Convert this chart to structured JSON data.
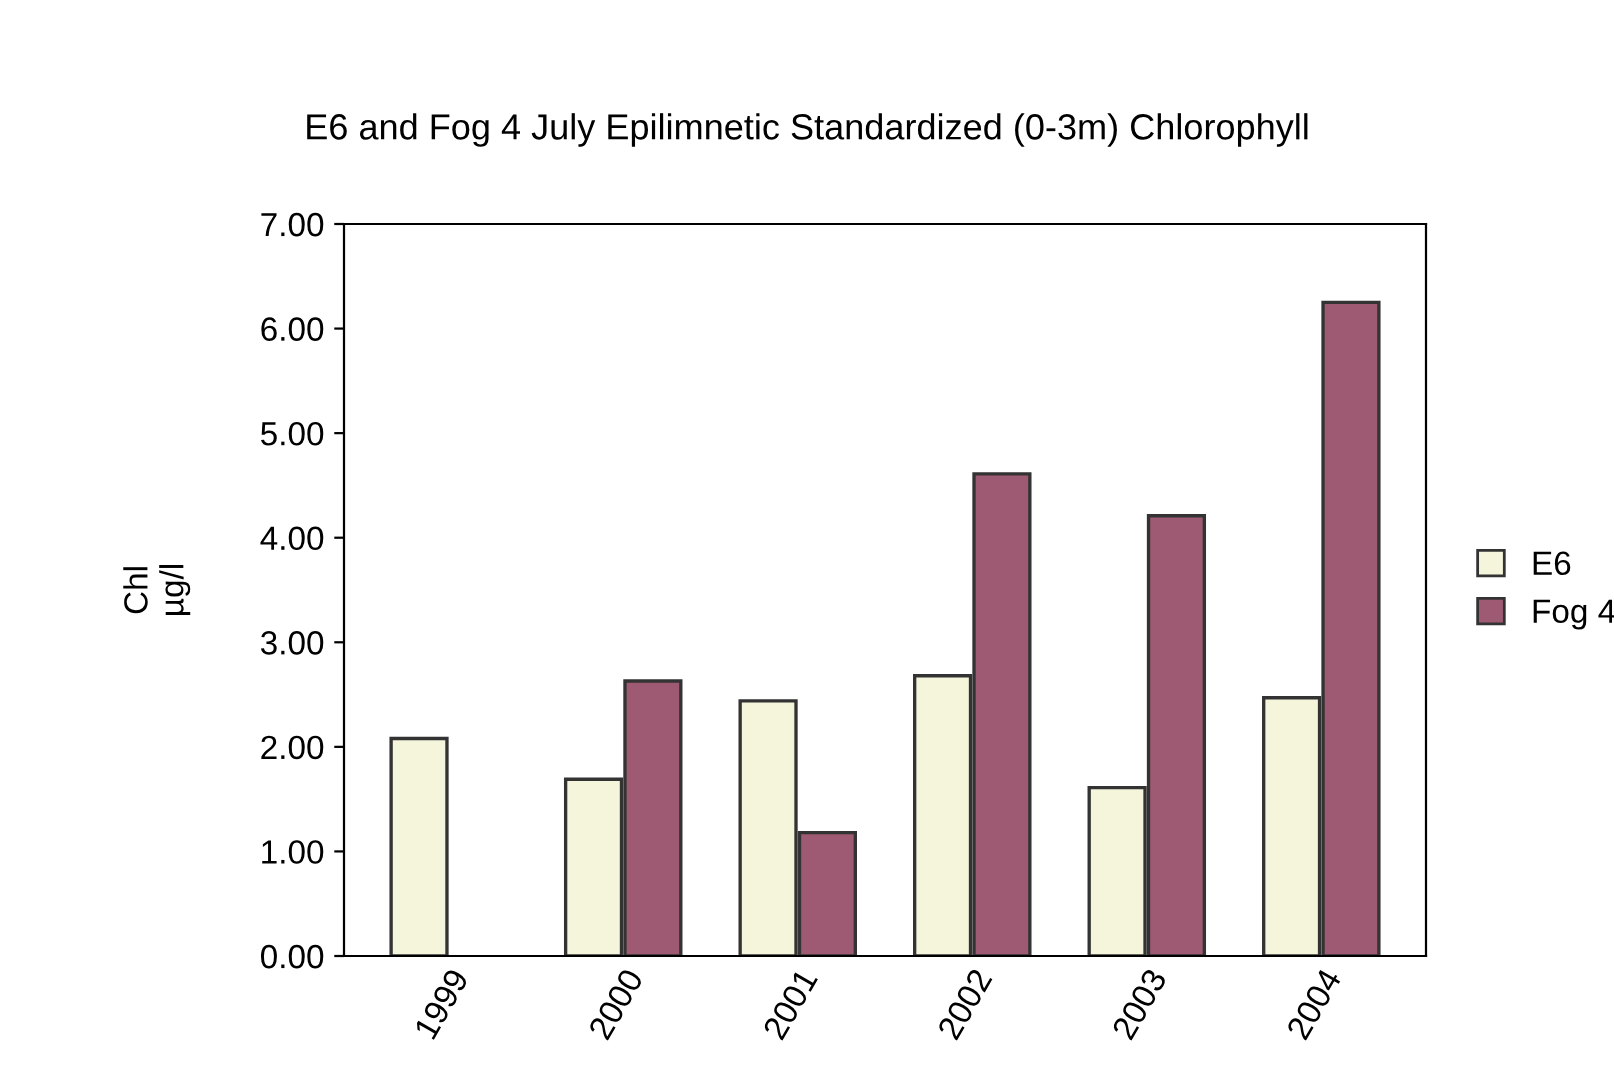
{
  "chart_data": {
    "type": "bar",
    "title": "E6 and Fog 4 July Epilimnetic Standardized (0-3m) Chlorophyll",
    "ylabel": "Chl\nµg/l",
    "categories": [
      "1999",
      "2000",
      "2001",
      "2002",
      "2003",
      "2004"
    ],
    "series": [
      {
        "name": "E6",
        "color": "#f5f5dc",
        "values": [
          2.08,
          1.69,
          2.44,
          2.68,
          1.61,
          2.47
        ]
      },
      {
        "name": "Fog 4",
        "color": "#9e5a72",
        "values": [
          null,
          2.63,
          1.18,
          4.61,
          4.21,
          6.25
        ]
      }
    ],
    "ylim": [
      0,
      7
    ],
    "yticks": [
      {
        "value": 0,
        "label": "0.00"
      },
      {
        "value": 1,
        "label": "1.00"
      },
      {
        "value": 2,
        "label": "2.00"
      },
      {
        "value": 3,
        "label": "3.00"
      },
      {
        "value": 4,
        "label": "4.00"
      },
      {
        "value": 5,
        "label": "5.00"
      },
      {
        "value": 6,
        "label": "6.00"
      },
      {
        "value": 7,
        "label": "7.00"
      }
    ],
    "grid": false,
    "legend": "right"
  }
}
